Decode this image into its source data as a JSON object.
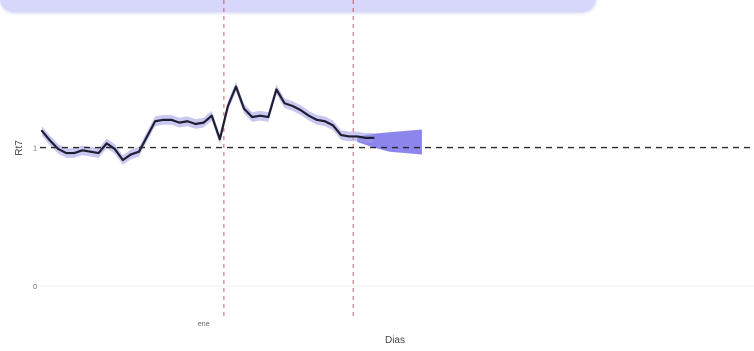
{
  "colors": {
    "line": "#1f1f33",
    "ribbon": "#9d9ae6",
    "forecast_band": "#8078ea",
    "vline": "#d65a5a",
    "hline": "#2a2a2a",
    "banner": "#d7d7fb"
  },
  "chart_data": {
    "type": "line",
    "title": "",
    "xlabel": "Dias",
    "ylabel": "Rt7",
    "xlim": [
      0,
      60
    ],
    "ylim": [
      0,
      1.95
    ],
    "y_ticks": [
      {
        "value": 0,
        "label": "0"
      },
      {
        "value": 1,
        "label": "1"
      }
    ],
    "x_ticks": [
      {
        "value": 20,
        "label": "ene"
      }
    ],
    "grid": false,
    "legend": "none",
    "reference_lines": {
      "horizontal_y": 1,
      "vertical_x": [
        22.5,
        38.5
      ]
    },
    "series": [
      {
        "x": [
          0,
          1,
          2,
          3,
          4,
          5,
          6,
          7,
          8,
          9,
          10,
          11,
          12,
          13,
          14,
          15,
          16,
          17,
          18,
          19,
          20,
          21,
          22,
          23,
          24,
          25,
          26,
          27,
          28,
          29,
          30,
          31,
          32,
          33,
          34,
          35,
          36,
          37,
          38,
          39,
          40,
          41,
          42,
          43,
          44,
          45,
          46,
          47,
          48
        ],
        "y": [
          1.12,
          1.05,
          0.99,
          0.96,
          0.96,
          0.98,
          0.97,
          0.96,
          1.03,
          0.99,
          0.91,
          0.95,
          0.97,
          1.08,
          1.19,
          1.2,
          1.2,
          1.18,
          1.19,
          1.17,
          1.18,
          1.23,
          1.06,
          1.3,
          1.44,
          1.28,
          1.22,
          1.23,
          1.22,
          1.42,
          1.32,
          1.3,
          1.27,
          1.23,
          1.2,
          1.19,
          1.16,
          1.09,
          1.08,
          1.08,
          1.07,
          1.07,
          null,
          null,
          null,
          null,
          null,
          null,
          null
        ],
        "ribbon_halfwidth": 0.035
      }
    ],
    "forecast": {
      "x": [
        39,
        41,
        43,
        45,
        47
      ],
      "upper": [
        1.08,
        1.1,
        1.11,
        1.12,
        1.13
      ],
      "lower": [
        1.04,
        1.0,
        0.97,
        0.96,
        0.95
      ]
    }
  }
}
